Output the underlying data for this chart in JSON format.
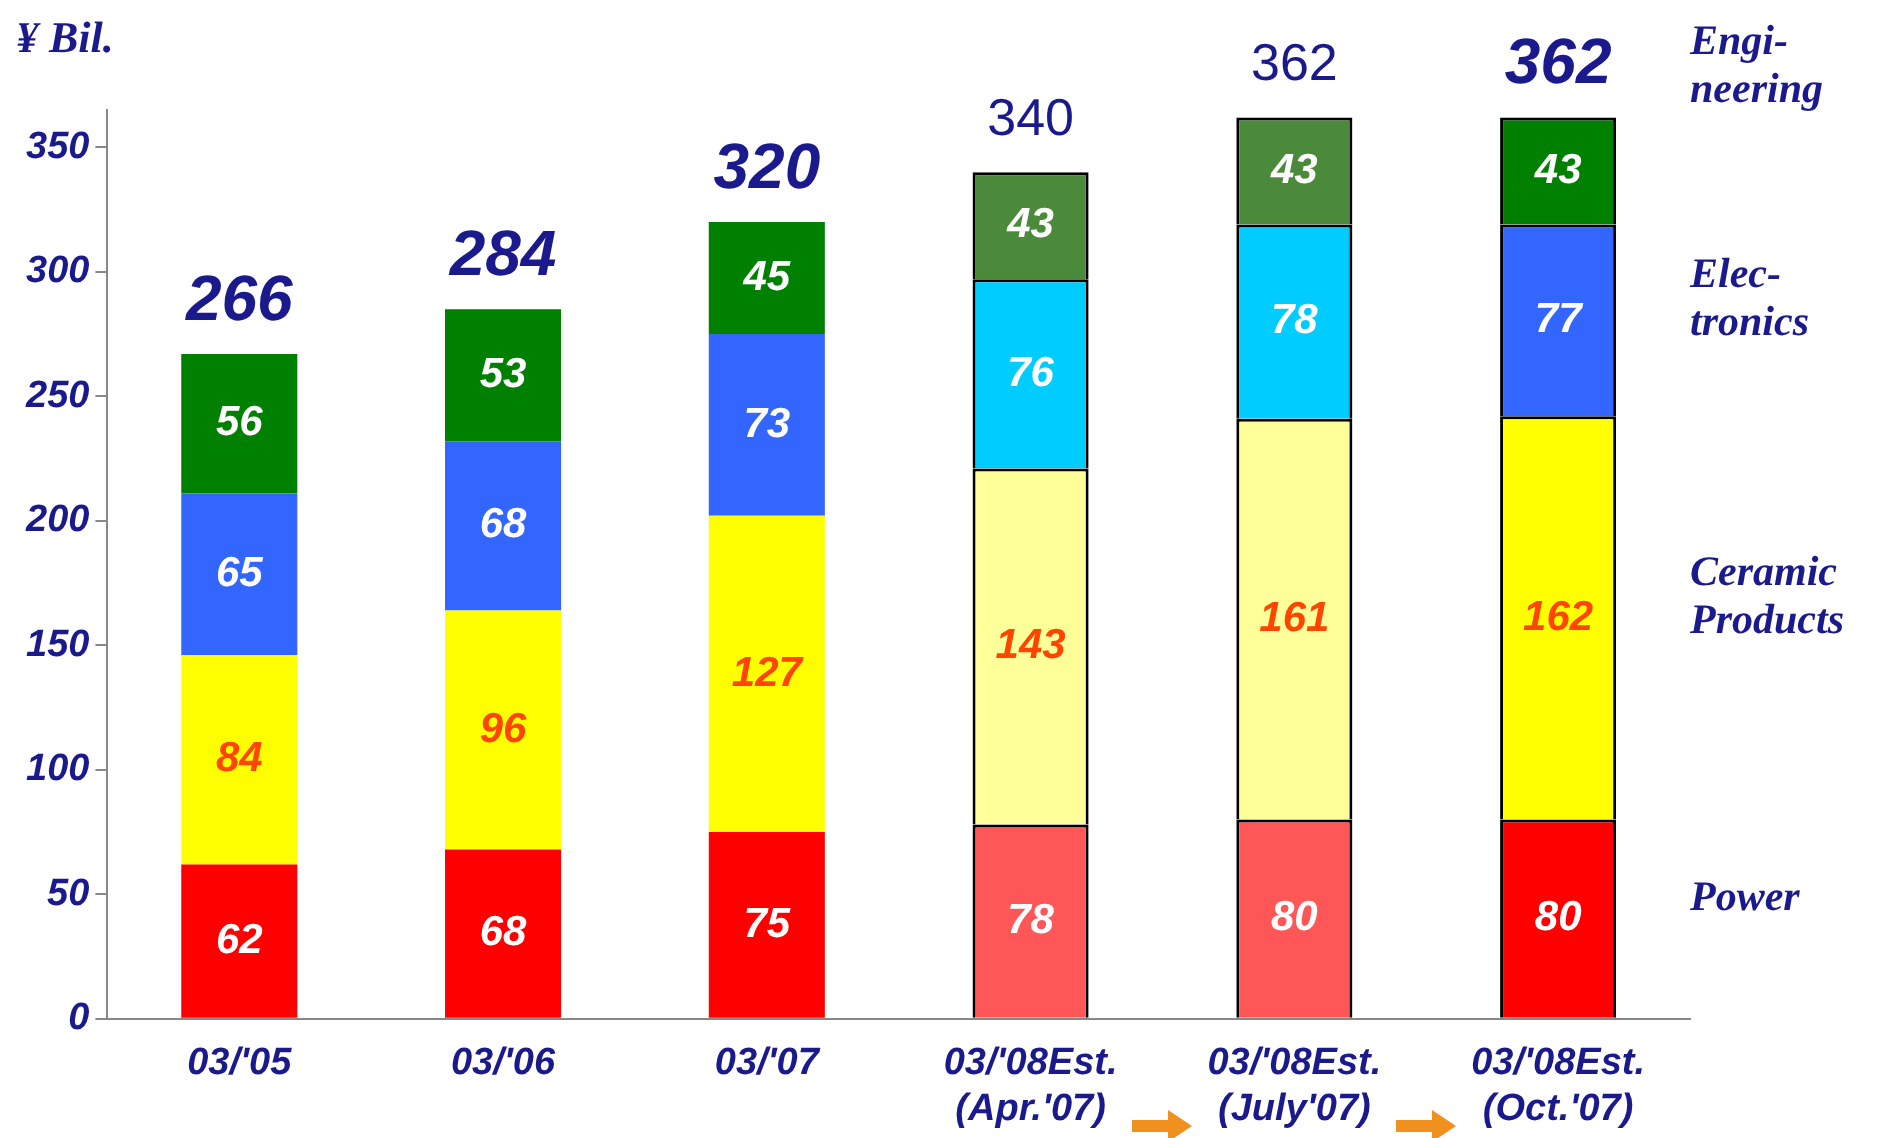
{
  "chart_data": {
    "type": "bar",
    "stacked": true,
    "ylabel": "¥ Bil.",
    "categories": [
      "03/'05",
      "03/'06",
      "03/'07",
      "03/'08Est.\n(Apr.'07)",
      "03/'08Est.\n(July'07)",
      "03/'08Est.\n(Oct.'07)"
    ],
    "series": [
      {
        "name": "Power",
        "colors": [
          "#ff0000",
          "#ff0000",
          "#ff0000",
          "#ff5757",
          "#ff5757",
          "#ff0000"
        ],
        "values": [
          62,
          68,
          75,
          78,
          80,
          80
        ]
      },
      {
        "name": "Ceramic\nProducts",
        "colors": [
          "#ffff00",
          "#ffff00",
          "#ffff00",
          "#ffff99",
          "#ffff99",
          "#ffff00"
        ],
        "values": [
          84,
          96,
          127,
          143,
          161,
          162
        ]
      },
      {
        "name": "Elec-\ntronics",
        "colors": [
          "#3366ff",
          "#3366ff",
          "#3366ff",
          "#00ccff",
          "#00ccff",
          "#3366ff"
        ],
        "values": [
          65,
          68,
          73,
          76,
          78,
          77
        ]
      },
      {
        "name": "Engi-\nneering",
        "colors": [
          "#008000",
          "#008000",
          "#008000",
          "#4a8a3a",
          "#4a8a3a",
          "#008000"
        ],
        "values": [
          56,
          53,
          45,
          43,
          43,
          43
        ]
      }
    ],
    "totals": [
      "266",
      "284",
      "320",
      "340",
      "362",
      "362"
    ],
    "data_labels": true,
    "legend": "right",
    "grid": false,
    "ylim": [
      0,
      365
    ],
    "yticks": [
      0,
      50,
      100,
      150,
      200,
      250,
      300,
      350
    ]
  }
}
